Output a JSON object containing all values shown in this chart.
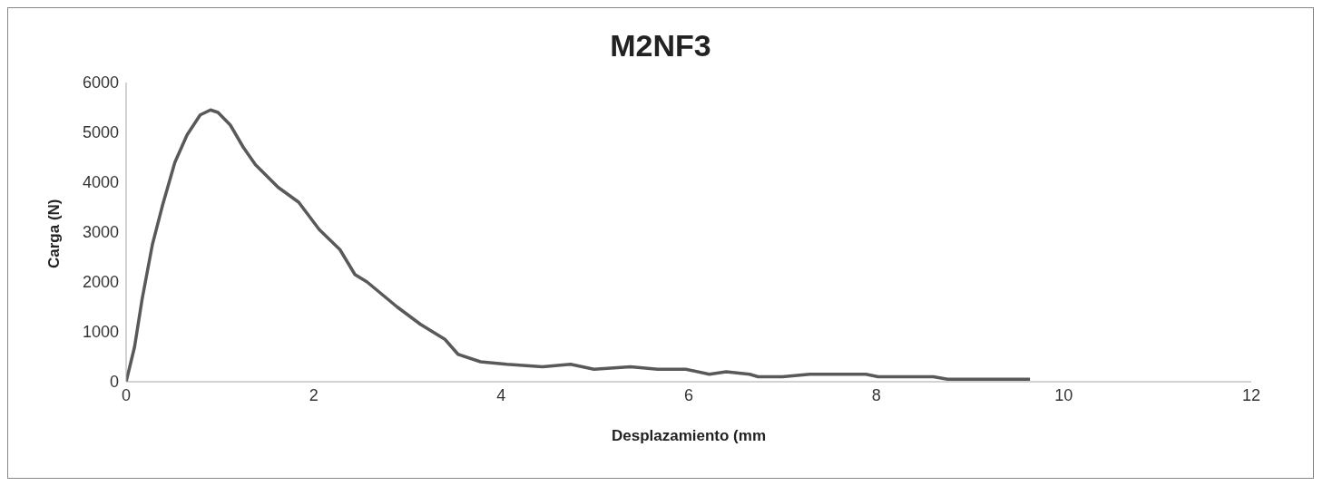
{
  "chart_data": {
    "type": "line",
    "title": "M2NF3",
    "xlabel": "Desplazamiento (mm",
    "ylabel": "Carga (N)",
    "xlim": [
      0,
      12
    ],
    "xticks": [
      0,
      2,
      4,
      6,
      8,
      10,
      12
    ],
    "ylim": [
      0,
      6000
    ],
    "yticks": [
      0,
      1000,
      2000,
      3000,
      4000,
      5000,
      6000
    ],
    "grid": false,
    "legend": false,
    "marker": "none",
    "line_style": "solid",
    "series": [
      {
        "color": "#595959",
        "x": [
          0,
          0.09,
          0.17,
          0.28,
          0.39,
          0.52,
          0.65,
          0.79,
          0.9,
          0.98,
          1.11,
          1.25,
          1.38,
          1.62,
          1.84,
          2.06,
          2.28,
          2.44,
          2.57,
          2.89,
          3.14,
          3.4,
          3.54,
          3.78,
          4.06,
          4.44,
          4.74,
          4.99,
          5.38,
          5.67,
          5.97,
          6.22,
          6.4,
          6.65,
          6.74,
          7.0,
          7.29,
          7.63,
          7.89,
          8.02,
          8.61,
          8.76,
          9.64
        ],
        "values": [
          0,
          700,
          1650,
          2750,
          3550,
          4400,
          4950,
          5350,
          5450,
          5400,
          5150,
          4700,
          4350,
          3900,
          3600,
          3050,
          2650,
          2150,
          2000,
          1500,
          1150,
          850,
          550,
          400,
          350,
          300,
          350,
          250,
          300,
          250,
          250,
          150,
          200,
          150,
          100,
          100,
          150,
          150,
          150,
          100,
          100,
          50,
          50
        ]
      }
    ]
  }
}
